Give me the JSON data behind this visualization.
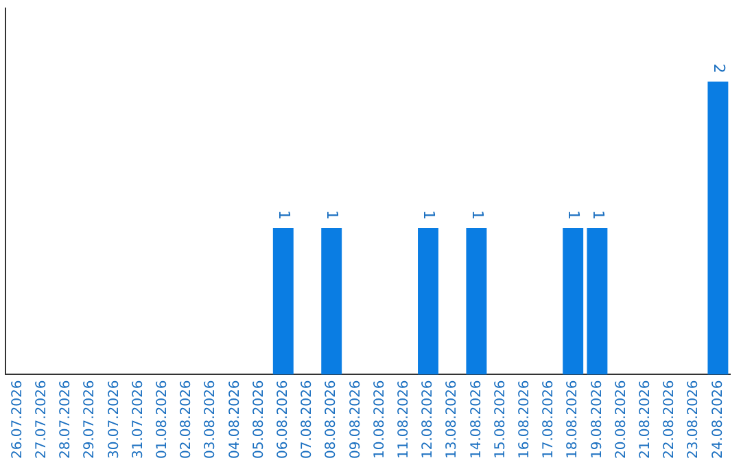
{
  "chart_data": {
    "type": "bar",
    "categories": [
      "26.07.2026",
      "27.07.2026",
      "28.07.2026",
      "29.07.2026",
      "30.07.2026",
      "31.07.2026",
      "01.08.2026",
      "02.08.2026",
      "03.08.2026",
      "04.08.2026",
      "05.08.2026",
      "06.08.2026",
      "07.08.2026",
      "08.08.2026",
      "09.08.2026",
      "10.08.2026",
      "11.08.2026",
      "12.08.2026",
      "13.08.2026",
      "14.08.2026",
      "15.08.2026",
      "16.08.2026",
      "17.08.2026",
      "18.08.2026",
      "19.08.2026",
      "20.08.2026",
      "21.08.2026",
      "22.08.2026",
      "23.08.2026",
      "24.08.2026"
    ],
    "values": [
      0,
      0,
      0,
      0,
      0,
      0,
      0,
      0,
      0,
      0,
      0,
      1,
      0,
      1,
      0,
      0,
      0,
      1,
      0,
      1,
      0,
      0,
      0,
      1,
      1,
      0,
      0,
      0,
      0,
      2
    ],
    "value_labels": [
      null,
      null,
      null,
      null,
      null,
      null,
      null,
      null,
      null,
      null,
      null,
      "1",
      null,
      "1",
      null,
      null,
      null,
      "1",
      null,
      "1",
      null,
      null,
      null,
      "1",
      "1",
      null,
      null,
      null,
      null,
      "2"
    ],
    "color": "#0a7de3",
    "tick_labels": "x",
    "grid": false,
    "legend": false
  }
}
